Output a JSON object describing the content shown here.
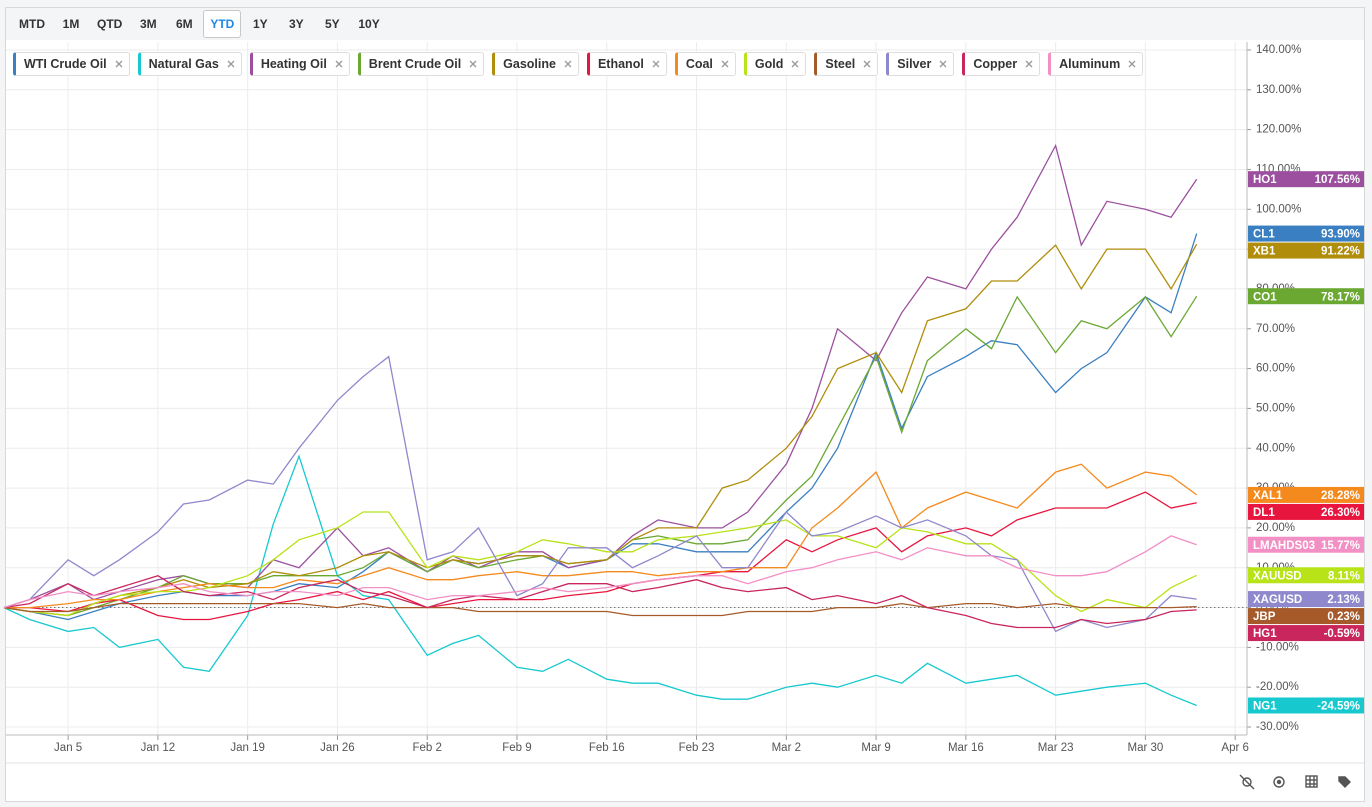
{
  "toolbar": {
    "range_buttons": [
      "MTD",
      "1M",
      "QTD",
      "3M",
      "6M",
      "YTD",
      "1Y",
      "3Y",
      "5Y",
      "10Y"
    ],
    "active": 5
  },
  "chart_data": {
    "type": "line",
    "x": [
      0,
      2,
      5,
      7,
      9,
      12,
      14,
      16,
      19,
      21,
      23,
      26,
      28,
      30,
      33,
      35,
      37,
      40,
      42,
      44,
      47,
      49,
      51,
      54,
      56,
      58,
      61,
      63,
      65,
      68,
      70,
      72,
      75,
      77,
      79,
      82,
      84,
      86,
      89,
      91,
      93
    ],
    "xlim": [
      0,
      97
    ],
    "xticks": [
      {
        "value": 5,
        "label": "Jan 5"
      },
      {
        "value": 12,
        "label": "Jan 12"
      },
      {
        "value": 19,
        "label": "Jan 19"
      },
      {
        "value": 26,
        "label": "Jan 26"
      },
      {
        "value": 33,
        "label": "Feb 2"
      },
      {
        "value": 40,
        "label": "Feb 9"
      },
      {
        "value": 47,
        "label": "Feb 16"
      },
      {
        "value": 54,
        "label": "Feb 23"
      },
      {
        "value": 61,
        "label": "Mar 2"
      },
      {
        "value": 68,
        "label": "Mar 9"
      },
      {
        "value": 75,
        "label": "Mar 16"
      },
      {
        "value": 82,
        "label": "Mar 23"
      },
      {
        "value": 89,
        "label": "Mar 30"
      },
      {
        "value": 96,
        "label": "Apr 6"
      }
    ],
    "ylim": [
      -32,
      142
    ],
    "yticks": [
      {
        "value": -30,
        "label": "-30.00%"
      },
      {
        "value": -20,
        "label": "-20.00%"
      },
      {
        "value": -10,
        "label": "-10.00%"
      },
      {
        "value": 0,
        "label": "0.00%"
      },
      {
        "value": 10,
        "label": "10.00%"
      },
      {
        "value": 20,
        "label": "20.00%"
      },
      {
        "value": 30,
        "label": "30.00%"
      },
      {
        "value": 40,
        "label": "40.00%"
      },
      {
        "value": 50,
        "label": "50.00%"
      },
      {
        "value": 60,
        "label": "60.00%"
      },
      {
        "value": 70,
        "label": "70.00%"
      },
      {
        "value": 80,
        "label": "80.00%"
      },
      {
        "value": 90,
        "label": "90.00%"
      },
      {
        "value": 100,
        "label": "100.00%"
      },
      {
        "value": 110,
        "label": "110.00%"
      },
      {
        "value": 120,
        "label": "120.00%"
      },
      {
        "value": 130,
        "label": "130.00%"
      },
      {
        "value": 140,
        "label": "140.00%"
      }
    ],
    "grid": true,
    "series": [
      {
        "name": "WTI Crude Oil",
        "symbol": "CL1",
        "last_label": "93.90%",
        "color": "#3a7fc1",
        "values": [
          0,
          -1,
          -3,
          -1,
          1,
          3,
          4,
          3,
          3,
          4,
          6,
          5,
          9,
          14,
          9,
          12,
          11,
          13,
          13,
          10,
          12,
          16,
          16,
          14,
          14,
          14,
          24,
          30,
          40,
          64,
          45,
          58,
          63,
          67,
          66,
          54,
          60,
          64,
          78,
          74,
          93.9
        ]
      },
      {
        "name": "Natural Gas",
        "symbol": "NG1",
        "last_label": "-24.59%",
        "color": "#17c9cf",
        "values": [
          0,
          -3,
          -6,
          -5,
          -10,
          -8,
          -15,
          -16,
          -2,
          21,
          38,
          8,
          3,
          2,
          -12,
          -9,
          -7,
          -15,
          -16,
          -13,
          -18,
          -19,
          -19,
          -22,
          -23,
          -23,
          -20,
          -19,
          -20,
          -17,
          -19,
          -14,
          -19,
          -18,
          -17,
          -22,
          -21,
          -20,
          -19,
          -22,
          -24.59
        ]
      },
      {
        "name": "Heating Oil",
        "symbol": "HO1",
        "last_label": "107.56%",
        "color": "#9b4f9e",
        "values": [
          0,
          2,
          6,
          2,
          4,
          7,
          8,
          6,
          5,
          12,
          10,
          20,
          13,
          15,
          9,
          13,
          10,
          14,
          14,
          10,
          12,
          18,
          22,
          20,
          20,
          24,
          36,
          50,
          70,
          62,
          74,
          83,
          80,
          90,
          98,
          116,
          91,
          102,
          100,
          98,
          107.56
        ]
      },
      {
        "name": "Brent Crude Oil",
        "symbol": "CO1",
        "last_label": "78.17%",
        "color": "#6aa832",
        "values": [
          0,
          -1,
          -2,
          0,
          2,
          5,
          8,
          6,
          6,
          8,
          8,
          8,
          10,
          14,
          9,
          12,
          10,
          12,
          13,
          11,
          12,
          17,
          18,
          16,
          16,
          17,
          27,
          33,
          45,
          63,
          44,
          62,
          70,
          65,
          78,
          64,
          72,
          70,
          78,
          68,
          78.17
        ]
      },
      {
        "name": "Gasoline",
        "symbol": "XB1",
        "last_label": "91.22%",
        "color": "#b08d0b",
        "values": [
          0,
          -1,
          -2,
          1,
          3,
          5,
          7,
          5,
          6,
          9,
          8,
          10,
          13,
          14,
          10,
          12,
          11,
          13,
          13,
          11,
          12,
          17,
          20,
          20,
          30,
          32,
          40,
          48,
          60,
          64,
          54,
          72,
          75,
          82,
          82,
          91,
          80,
          90,
          90,
          80,
          91.22
        ]
      },
      {
        "name": "Ethanol",
        "symbol": "DL1",
        "last_label": "26.30%",
        "color": "#e8163f",
        "values": [
          0,
          0,
          -1,
          1,
          2,
          -2,
          -3,
          -3,
          -1,
          1,
          2,
          4,
          2,
          4,
          0,
          1,
          2,
          2,
          2,
          3,
          4,
          6,
          7,
          8,
          9,
          9,
          17,
          14,
          17,
          20,
          14,
          18,
          20,
          18,
          22,
          25,
          25,
          25,
          29,
          25,
          26.3
        ]
      },
      {
        "name": "Coal",
        "symbol": "XAL1",
        "last_label": "28.28%",
        "color": "#f48a1e",
        "values": [
          0,
          0,
          1,
          2,
          2,
          4,
          5,
          6,
          5,
          5,
          7,
          6,
          8,
          10,
          7,
          7,
          8,
          9,
          8,
          8,
          9,
          9,
          8,
          9,
          9,
          10,
          10,
          20,
          25,
          34,
          20,
          25,
          29,
          27,
          25,
          34,
          36,
          30,
          34,
          33,
          28.28
        ]
      },
      {
        "name": "Gold",
        "symbol": "XAUUSD",
        "last_label": "8.11%",
        "color": "#b7e317",
        "values": [
          0,
          -1,
          -2,
          1,
          3,
          4,
          4,
          5,
          8,
          12,
          17,
          20,
          24,
          24,
          10,
          13,
          12,
          14,
          17,
          16,
          14,
          14,
          17,
          18,
          19,
          20,
          22,
          18,
          18,
          15,
          20,
          19,
          16,
          16,
          12,
          3,
          -1,
          2,
          0,
          5,
          8.11
        ]
      },
      {
        "name": "Steel",
        "symbol": "JBP",
        "last_label": "0.23%",
        "color": "#a65a2a",
        "values": [
          0,
          -1,
          -1,
          0,
          1,
          1,
          1,
          1,
          1,
          1,
          1,
          0,
          1,
          0,
          0,
          0,
          -1,
          -1,
          -1,
          -1,
          -1,
          -2,
          -2,
          -2,
          -2,
          -1,
          -1,
          -1,
          0,
          0,
          1,
          0,
          1,
          1,
          0,
          1,
          0,
          0,
          0,
          0,
          0.23
        ]
      },
      {
        "name": "Silver",
        "symbol": "XAGUSD",
        "last_label": "2.13%",
        "color": "#8f88cc",
        "values": [
          0,
          2,
          12,
          8,
          12,
          19,
          26,
          27,
          32,
          31,
          40,
          52,
          58,
          63,
          12,
          14,
          20,
          3,
          6,
          15,
          15,
          10,
          13,
          18,
          10,
          10,
          24,
          18,
          19,
          23,
          20,
          22,
          18,
          13,
          12,
          -6,
          -3,
          -5,
          -3,
          3,
          2.13
        ]
      },
      {
        "name": "Copper",
        "symbol": "HG1",
        "last_label": "-0.59%",
        "color": "#c8265c",
        "values": [
          0,
          1,
          6,
          3,
          5,
          8,
          4,
          3,
          4,
          2,
          5,
          7,
          4,
          3,
          0,
          2,
          3,
          2,
          4,
          6,
          6,
          4,
          5,
          7,
          5,
          4,
          5,
          2,
          3,
          1,
          3,
          0,
          -2,
          -4,
          -5,
          -5,
          -3,
          -4,
          -3,
          -1,
          -0.59
        ]
      },
      {
        "name": "Aluminum",
        "symbol": "LMAHDS03",
        "last_label": "15.77%",
        "color": "#f28fc4",
        "values": [
          0,
          2,
          4,
          3,
          4,
          5,
          6,
          4,
          3,
          4,
          4,
          3,
          5,
          5,
          2,
          3,
          3,
          4,
          5,
          4,
          5,
          6,
          7,
          8,
          8,
          6,
          9,
          10,
          12,
          14,
          12,
          15,
          13,
          13,
          10,
          8,
          8,
          9,
          14,
          18,
          15.77
        ]
      }
    ]
  }
}
